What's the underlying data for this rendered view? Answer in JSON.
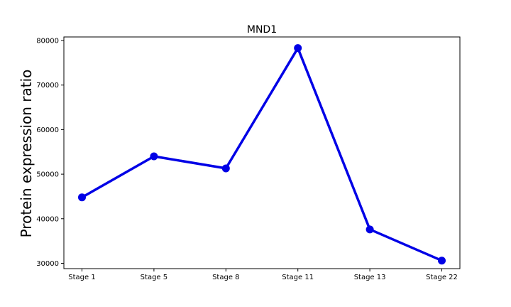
{
  "chart_data": {
    "type": "line",
    "title": "MND1",
    "xlabel": "",
    "ylabel": "Protein expression ratio",
    "categories": [
      "Stage 1",
      "Stage 5",
      "Stage 8",
      "Stage 11",
      "Stage 13",
      "Stage 22"
    ],
    "series": [
      {
        "values": [
          44800,
          54000,
          51300,
          78300,
          37600,
          30600
        ],
        "color": "#0000e6"
      }
    ],
    "ylim": [
      28800,
      80800
    ],
    "yticks": [
      30000,
      40000,
      50000,
      60000,
      70000,
      80000
    ],
    "grid": false,
    "legend": "none"
  }
}
